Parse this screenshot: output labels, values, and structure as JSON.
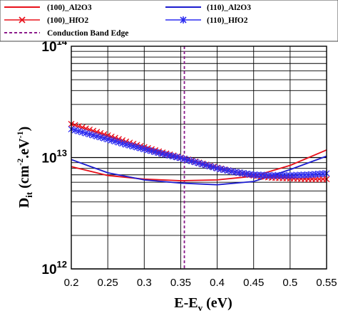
{
  "chart_data": {
    "type": "line",
    "xlabel_main": "E-E",
    "xlabel_sub": "v",
    "xlabel_unit": " (eV)",
    "ylabel_main": "D",
    "ylabel_sub": "it",
    "ylabel_unit": " (cm",
    "ylabel_exp1": "-2",
    "ylabel_mid": ".eV",
    "ylabel_exp2": "-1",
    "ylabel_close": ")",
    "xlim": [
      0.2,
      0.55
    ],
    "ylim_log10": [
      12,
      14
    ],
    "y_scale": "log",
    "grid": true,
    "legend_position": "top",
    "x_ticks": [
      "0.2",
      "0.25",
      "0.3",
      "0.35",
      "0.4",
      "0.45",
      "0.5",
      "0.55"
    ],
    "x_tick_values": [
      0.2,
      0.25,
      0.3,
      0.35,
      0.4,
      0.45,
      0.5,
      0.55
    ],
    "y_ticks": [
      {
        "base": "10",
        "exp": "14",
        "value": 100000000000000.0
      },
      {
        "base": "10",
        "exp": "13",
        "value": 10000000000000.0
      },
      {
        "base": "10",
        "exp": "12",
        "value": 1000000000000.0
      }
    ],
    "series": [
      {
        "name": "(100)_Al2O3",
        "color": "#e8101a",
        "marker": "none",
        "x": [
          0.2,
          0.25,
          0.3,
          0.35,
          0.4,
          0.45,
          0.5,
          0.55
        ],
        "y": [
          8300000000000.0,
          6900000000000.0,
          6400000000000.0,
          6200000000000.0,
          6300000000000.0,
          6800000000000.0,
          8500000000000.0,
          11700000000000.0
        ]
      },
      {
        "name": "(110)_Al2O3",
        "color": "#1c1ccf",
        "marker": "none",
        "x": [
          0.2,
          0.25,
          0.3,
          0.35,
          0.4,
          0.45,
          0.5,
          0.55
        ],
        "y": [
          9600000000000.0,
          7300000000000.0,
          6300000000000.0,
          5900000000000.0,
          5700000000000.0,
          6100000000000.0,
          7800000000000.0,
          10300000000000.0
        ]
      },
      {
        "name": "(100)_HfO2",
        "color": "#e8101a",
        "marker": "x",
        "x": [
          0.2,
          0.225,
          0.25,
          0.275,
          0.3,
          0.325,
          0.35,
          0.375,
          0.4,
          0.425,
          0.45,
          0.475,
          0.5,
          0.525,
          0.55
        ],
        "y": [
          20000000000000.0,
          17800000000000.0,
          15800000000000.0,
          13900000000000.0,
          12400000000000.0,
          11100000000000.0,
          10000000000000.0,
          9000000000000.0,
          8100000000000.0,
          7400000000000.0,
          6900000000000.0,
          6600000000000.0,
          6500000000000.0,
          6400000000000.0,
          6400000000000.0
        ]
      },
      {
        "name": "(110)_HfO2",
        "color": "#2b2bf0",
        "marker": "x",
        "x": [
          0.2,
          0.225,
          0.25,
          0.275,
          0.3,
          0.325,
          0.35,
          0.375,
          0.4,
          0.425,
          0.45,
          0.475,
          0.5,
          0.525,
          0.55
        ],
        "y": [
          18000000000000.0,
          16200000000000.0,
          14600000000000.0,
          13100000000000.0,
          11900000000000.0,
          10800000000000.0,
          9900000000000.0,
          8900000000000.0,
          8000000000000.0,
          7400000000000.0,
          7000000000000.0,
          6900000000000.0,
          6900000000000.0,
          7000000000000.0,
          7200000000000.0
        ]
      }
    ],
    "vline": {
      "name": "Conduction Band Edge",
      "x": 0.355,
      "color": "#8b1a8b"
    }
  }
}
